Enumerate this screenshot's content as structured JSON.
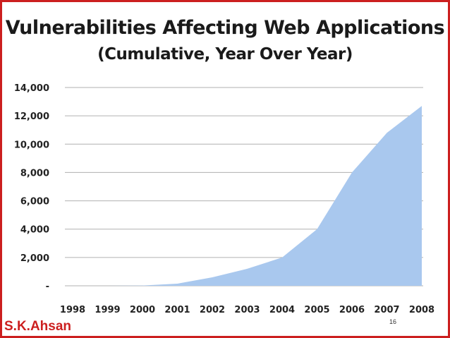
{
  "slide": {
    "author": "S.K.Ahsan",
    "page_number": "16",
    "frame_color": "#cc1f1f"
  },
  "chart_data": {
    "type": "area",
    "title": "Vulnerabilities Affecting Web Applications",
    "subtitle": "(Cumulative, Year Over Year)",
    "xlabel": "",
    "ylabel": "",
    "categories": [
      "1998",
      "1999",
      "2000",
      "2001",
      "2002",
      "2003",
      "2004",
      "2005",
      "2006",
      "2007",
      "2008"
    ],
    "series": [
      {
        "values": [
          0,
          0,
          20,
          150,
          600,
          1200,
          2000,
          4000,
          8000,
          10800,
          12700
        ],
        "color": "#a9c8ee"
      }
    ],
    "ylim": [
      0,
      14000
    ],
    "yticks": [
      0,
      2000,
      4000,
      6000,
      8000,
      10000,
      12000,
      14000
    ],
    "ytick_labels": [
      "-",
      "2,000",
      "4,000",
      "6,000",
      "8,000",
      "10,000",
      "12,000",
      "14,000"
    ],
    "grid": true,
    "legend": "none"
  }
}
